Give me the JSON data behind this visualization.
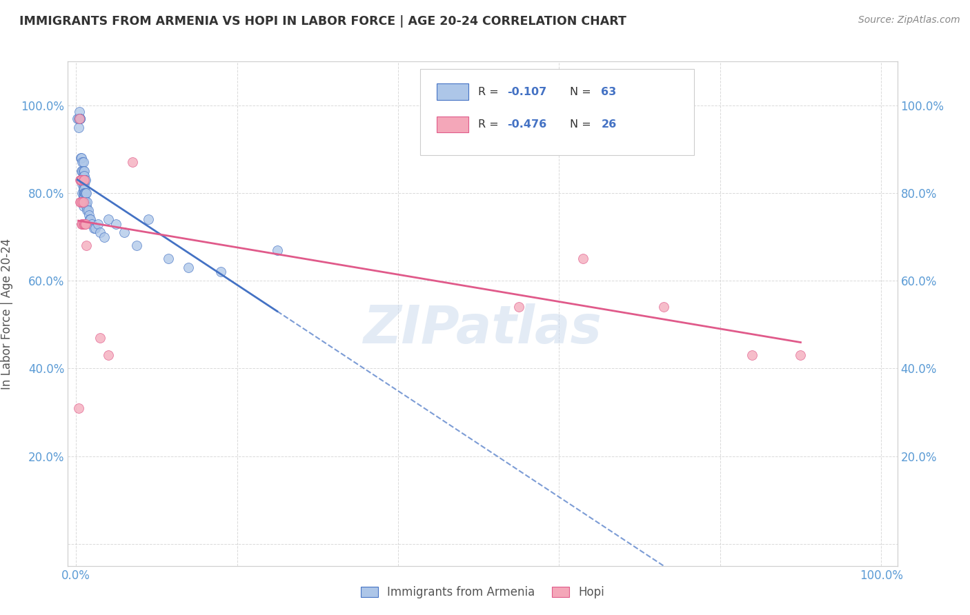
{
  "title": "IMMIGRANTS FROM ARMENIA VS HOPI IN LABOR FORCE | AGE 20-24 CORRELATION CHART",
  "source": "Source: ZipAtlas.com",
  "ylabel": "In Labor Force | Age 20-24",
  "legend_labels": [
    "Immigrants from Armenia",
    "Hopi"
  ],
  "armenia_R": -0.107,
  "armenia_N": 63,
  "hopi_R": -0.476,
  "hopi_N": 26,
  "armenia_color": "#adc6e8",
  "armenia_line_color": "#4472c4",
  "hopi_color": "#f4a7b9",
  "hopi_line_color": "#e05a8a",
  "watermark": "ZIPatlas",
  "xlim": [
    -0.01,
    1.02
  ],
  "ylim": [
    -0.05,
    1.1
  ],
  "armenia_x": [
    0.002,
    0.003,
    0.003,
    0.004,
    0.005,
    0.005,
    0.005,
    0.006,
    0.006,
    0.007,
    0.007,
    0.007,
    0.007,
    0.008,
    0.008,
    0.008,
    0.008,
    0.008,
    0.009,
    0.009,
    0.009,
    0.009,
    0.009,
    0.009,
    0.009,
    0.009,
    0.009,
    0.009,
    0.01,
    0.01,
    0.01,
    0.01,
    0.01,
    0.01,
    0.01,
    0.011,
    0.011,
    0.012,
    0.012,
    0.012,
    0.013,
    0.013,
    0.014,
    0.014,
    0.015,
    0.016,
    0.017,
    0.018,
    0.02,
    0.022,
    0.024,
    0.027,
    0.03,
    0.035,
    0.04,
    0.05,
    0.06,
    0.075,
    0.09,
    0.115,
    0.14,
    0.18,
    0.25
  ],
  "armenia_y": [
    0.97,
    0.97,
    0.95,
    0.985,
    0.97,
    0.97,
    0.97,
    0.88,
    0.83,
    0.88,
    0.85,
    0.83,
    0.83,
    0.87,
    0.85,
    0.83,
    0.82,
    0.8,
    0.87,
    0.85,
    0.84,
    0.83,
    0.82,
    0.81,
    0.8,
    0.79,
    0.78,
    0.77,
    0.85,
    0.84,
    0.82,
    0.81,
    0.8,
    0.79,
    0.78,
    0.83,
    0.8,
    0.83,
    0.8,
    0.78,
    0.8,
    0.77,
    0.78,
    0.76,
    0.76,
    0.75,
    0.74,
    0.74,
    0.73,
    0.72,
    0.72,
    0.73,
    0.71,
    0.7,
    0.74,
    0.73,
    0.71,
    0.68,
    0.74,
    0.65,
    0.63,
    0.62,
    0.67
  ],
  "hopi_x": [
    0.003,
    0.004,
    0.005,
    0.005,
    0.006,
    0.006,
    0.007,
    0.007,
    0.008,
    0.008,
    0.009,
    0.009,
    0.009,
    0.01,
    0.01,
    0.011,
    0.012,
    0.013,
    0.03,
    0.04,
    0.07,
    0.55,
    0.63,
    0.73,
    0.84,
    0.9
  ],
  "hopi_y": [
    0.31,
    0.97,
    0.83,
    0.78,
    0.83,
    0.78,
    0.83,
    0.73,
    0.78,
    0.73,
    0.83,
    0.78,
    0.73,
    0.83,
    0.73,
    0.73,
    0.73,
    0.68,
    0.47,
    0.43,
    0.87,
    0.54,
    0.65,
    0.54,
    0.43,
    0.43
  ]
}
